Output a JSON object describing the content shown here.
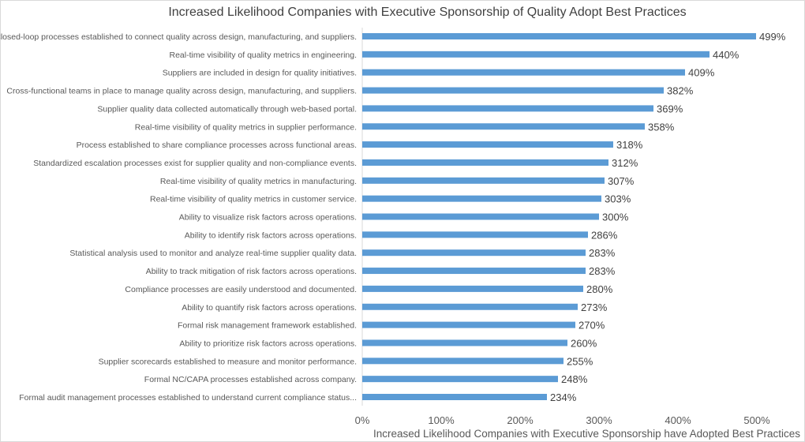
{
  "chart_data": {
    "type": "bar",
    "orientation": "horizontal",
    "title": "Increased Likelihood Companies with Executive Sponsorship of Quality Adopt Best Practices",
    "xlabel": "Increased Likelihood Companies with Executive Sponsorship have Adopted Best Practices",
    "ylabel": "",
    "xlim": [
      0,
      500
    ],
    "xticks": [
      "0%",
      "100%",
      "200%",
      "300%",
      "400%",
      "500%"
    ],
    "grid": false,
    "legend": "none",
    "bar_color": "#5B9BD5",
    "categories": [
      "Closed-loop processes established to connect quality across design, manufacturing, and suppliers.",
      "Real-time visibility of quality metrics in engineering.",
      "Suppliers are included in design for quality initiatives.",
      "Cross-functional teams in place to manage quality across design, manufacturing, and suppliers.",
      "Supplier quality data collected automatically through web-based portal.",
      "Real-time visibility of quality metrics in supplier performance.",
      "Process established to share compliance processes across functional areas.",
      "Standardized escalation processes exist for supplier quality and non-compliance events.",
      "Real-time visibility of quality metrics in manufacturing.",
      "Real-time visibility of quality metrics in customer service.",
      "Ability to visualize risk factors across operations.",
      "Ability to identify risk factors across operations.",
      "Statistical analysis used to monitor and analyze real-time supplier quality data.",
      "Ability to track mitigation of risk factors across operations.",
      "Compliance processes are easily understood and documented.",
      "Ability to quantify risk factors across operations.",
      "Formal risk management framework established.",
      "Ability to prioritize risk factors across operations.",
      "Supplier scorecards established to measure and monitor performance.",
      "Formal NC/CAPA processes established across company.",
      "Formal audit management processes established to understand current compliance status..."
    ],
    "values": [
      499,
      440,
      409,
      382,
      369,
      358,
      318,
      312,
      307,
      303,
      300,
      286,
      283,
      283,
      280,
      273,
      270,
      260,
      255,
      248,
      234
    ],
    "value_labels": [
      "499%",
      "440%",
      "409%",
      "382%",
      "369%",
      "358%",
      "318%",
      "312%",
      "307%",
      "303%",
      "300%",
      "286%",
      "283%",
      "283%",
      "280%",
      "273%",
      "270%",
      "260%",
      "255%",
      "248%",
      "234%"
    ]
  }
}
